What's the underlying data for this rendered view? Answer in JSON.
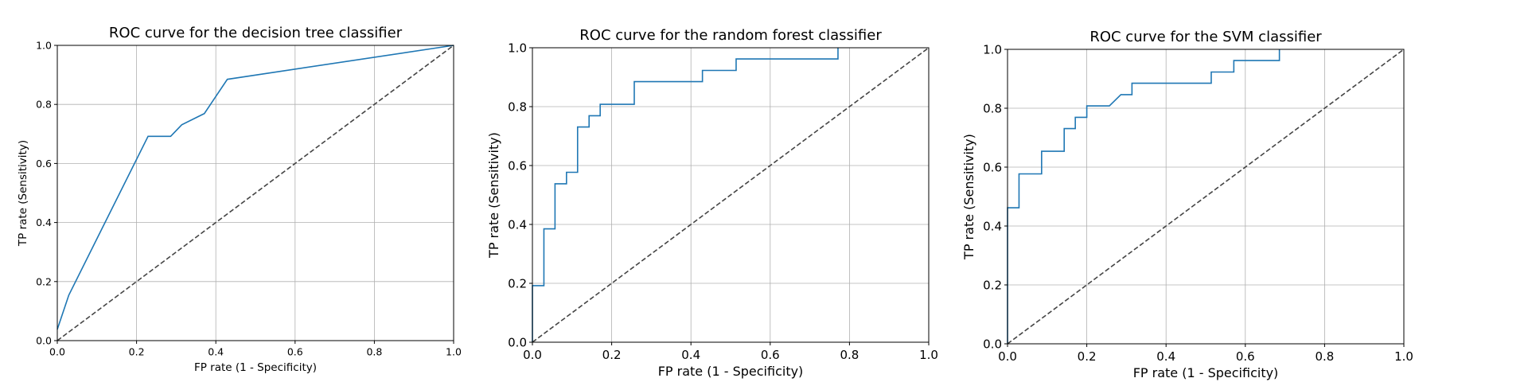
{
  "chart_data": [
    {
      "type": "line",
      "title": "ROC curve for the decision tree classifier",
      "xlabel": "FP rate (1 - Specificity)",
      "ylabel": "TP rate (Sensitivity)",
      "xlim": [
        0,
        1
      ],
      "ylim": [
        0,
        1
      ],
      "xticks": [
        "0.0",
        "0.2",
        "0.4",
        "0.6",
        "0.8",
        "1.0"
      ],
      "yticks": [
        "0.0",
        "0.2",
        "0.4",
        "0.6",
        "0.8",
        "1.0"
      ],
      "grid": true,
      "series": [
        {
          "color": "#1f77b4",
          "x": [
            0.0,
            0.0,
            0.029,
            0.229,
            0.286,
            0.314,
            0.371,
            0.429,
            1.0
          ],
          "y": [
            0.038,
            0.038,
            0.154,
            0.692,
            0.692,
            0.731,
            0.769,
            0.885,
            1.0
          ]
        },
        {
          "color": "#444444",
          "dashed": true,
          "x": [
            0,
            1
          ],
          "y": [
            0,
            1
          ]
        }
      ]
    },
    {
      "type": "line",
      "title": "ROC curve for the random forest classifier",
      "xlabel": "FP rate (1 - Specificity)",
      "ylabel": "TP rate (Sensitivity)",
      "xlim": [
        0,
        1
      ],
      "ylim": [
        0,
        1
      ],
      "xticks": [
        "0.0",
        "0.2",
        "0.4",
        "0.6",
        "0.8",
        "1.0"
      ],
      "yticks": [
        "0.0",
        "0.2",
        "0.4",
        "0.6",
        "0.8",
        "1.0"
      ],
      "grid": true,
      "series": [
        {
          "color": "#1f77b4",
          "x": [
            0.0,
            0.0,
            0.029,
            0.029,
            0.057,
            0.057,
            0.086,
            0.086,
            0.114,
            0.114,
            0.143,
            0.143,
            0.171,
            0.171,
            0.257,
            0.257,
            0.429,
            0.429,
            0.514,
            0.514,
            0.771,
            0.771
          ],
          "y": [
            0.0,
            0.192,
            0.192,
            0.385,
            0.385,
            0.538,
            0.538,
            0.577,
            0.577,
            0.731,
            0.731,
            0.769,
            0.769,
            0.808,
            0.808,
            0.885,
            0.885,
            0.923,
            0.923,
            0.962,
            0.962,
            1.0
          ]
        },
        {
          "color": "#444444",
          "dashed": true,
          "x": [
            0,
            1
          ],
          "y": [
            0,
            1
          ]
        }
      ]
    },
    {
      "type": "line",
      "title": "ROC curve for the SVM classifier",
      "xlabel": "FP rate (1 - Specificity)",
      "ylabel": "TP rate (Sensitivity)",
      "xlim": [
        0,
        1
      ],
      "ylim": [
        0,
        1
      ],
      "xticks": [
        "0.0",
        "0.2",
        "0.4",
        "0.6",
        "0.8",
        "1.0"
      ],
      "yticks": [
        "0.0",
        "0.2",
        "0.4",
        "0.6",
        "0.8",
        "1.0"
      ],
      "grid": true,
      "series": [
        {
          "color": "#1f77b4",
          "x": [
            0.0,
            0.0,
            0.029,
            0.029,
            0.086,
            0.086,
            0.143,
            0.143,
            0.171,
            0.171,
            0.2,
            0.2,
            0.257,
            0.286,
            0.286,
            0.314,
            0.314,
            0.514,
            0.514,
            0.571,
            0.571,
            0.686,
            0.686
          ],
          "y": [
            0.0,
            0.462,
            0.462,
            0.577,
            0.577,
            0.654,
            0.654,
            0.731,
            0.731,
            0.769,
            0.769,
            0.808,
            0.808,
            0.846,
            0.846,
            0.846,
            0.885,
            0.885,
            0.923,
            0.923,
            0.962,
            0.962,
            1.0
          ]
        },
        {
          "color": "#444444",
          "dashed": true,
          "x": [
            0,
            1
          ],
          "y": [
            0,
            1
          ]
        }
      ]
    }
  ]
}
